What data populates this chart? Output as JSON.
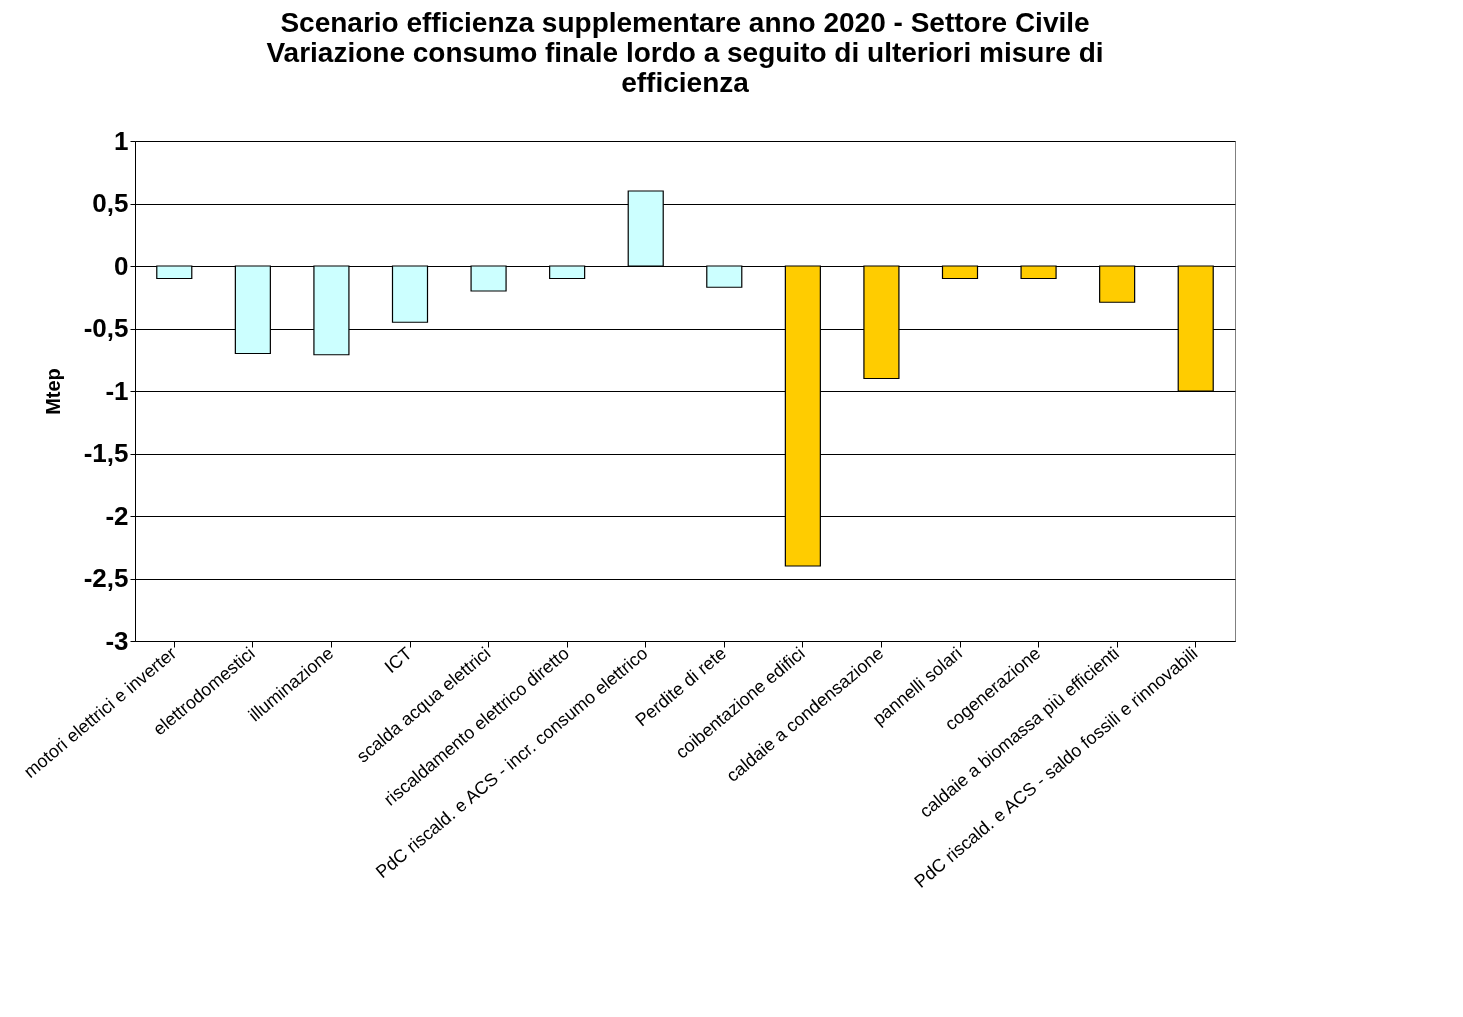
{
  "chart_data": {
    "type": "bar",
    "title": "Scenario efficienza supplementare anno 2020 - Settore Civile\nVariazione consumo finale lordo a seguito di ulteriori misure di\nefficienza",
    "ylabel": "Mtep",
    "categories": [
      "motori elettrici e inverter",
      "elettrodomestici",
      "illuminazione",
      "ICT",
      "scalda acqua elettrici",
      "riscaldamento elettrico diretto",
      "PdC riscald. e ACS - incr. consumo elettrico",
      "Perdite di rete",
      "coibentazione edifici",
      "caldaie a condensazione",
      "pannelli solari",
      "cogenerazione",
      "caldaie a biomassa più efficienti",
      "PdC riscald. e ACS - saldo fossili e rinnovabili"
    ],
    "values": [
      -0.1,
      -0.7,
      -0.71,
      -0.45,
      -0.2,
      -0.1,
      0.6,
      -0.17,
      -2.4,
      -0.9,
      -0.1,
      -0.1,
      -0.29,
      -1.0
    ],
    "colors": [
      "#ccffff",
      "#ccffff",
      "#ccffff",
      "#ccffff",
      "#ccffff",
      "#ccffff",
      "#ccffff",
      "#ccffff",
      "#ffcc00",
      "#ffcc00",
      "#ffcc00",
      "#ffcc00",
      "#ffcc00",
      "#ffcc00"
    ],
    "ylim": [
      -3,
      1
    ],
    "yticks": [
      1,
      {
        "value": 0.5,
        "label": "0,5"
      },
      0,
      {
        "value": -0.5,
        "label": "-0,5"
      },
      -1,
      {
        "value": -1.5,
        "label": "-1,5"
      },
      -2,
      {
        "value": -2.5,
        "label": "-2,5"
      },
      -3
    ],
    "grid": "y",
    "legend": false
  }
}
